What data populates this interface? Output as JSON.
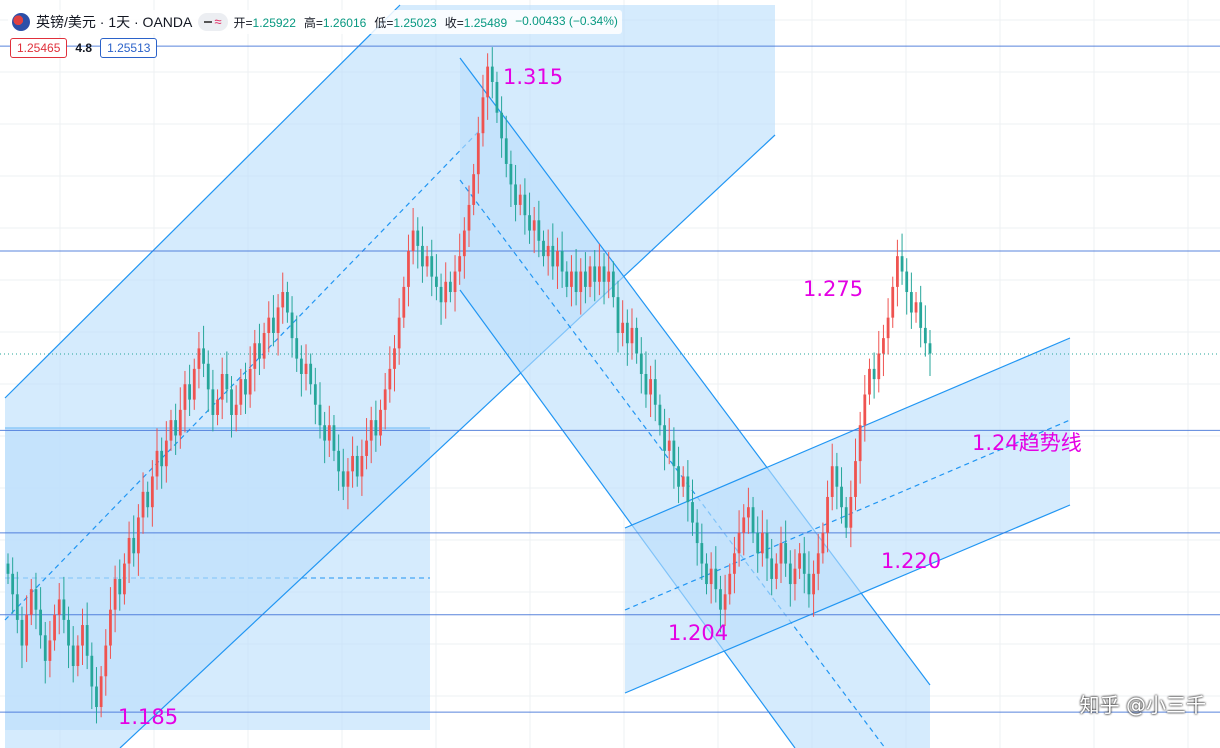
{
  "header": {
    "symbol": "英镑/美元 · 1天 · OANDA",
    "open_label": "开=",
    "open": "1.25922",
    "high_label": "高=",
    "high": "1.26016",
    "low_label": "低=",
    "low": "1.25023",
    "close_label": "收=",
    "close": "1.25489",
    "change": "−0.00433 (−0.34%)",
    "sell_price": "1.25465",
    "spread": "4.8",
    "buy_price": "1.25513"
  },
  "watermark": "知乎 @小三千",
  "colors": {
    "up": "#ef5350",
    "down": "#26a69a",
    "channel_fill": "#bbdefb",
    "channel_line": "#2196f3",
    "hline": "#3c6fd6",
    "annotation": "#e400e4"
  },
  "chart_data": {
    "type": "candlestick",
    "title": "",
    "ylim": [
      1.178,
      1.324
    ],
    "grid": true,
    "horizontal_levels": [
      1.315,
      1.275,
      1.24,
      1.22,
      1.204,
      1.185
    ],
    "current_price_line": 1.2549,
    "annotations": [
      {
        "text": "1.315",
        "price": 1.315
      },
      {
        "text": "1.275",
        "price": 1.275
      },
      {
        "text": "1.24趋势线",
        "price": 1.24
      },
      {
        "text": "1.220",
        "price": 1.22
      },
      {
        "text": "1.204",
        "price": 1.204
      },
      {
        "text": "1.185",
        "price": 1.185
      }
    ],
    "closes": [
      1.212,
      1.208,
      1.203,
      1.198,
      1.204,
      1.209,
      1.205,
      1.2,
      1.195,
      1.199,
      1.204,
      1.207,
      1.203,
      1.198,
      1.194,
      1.198,
      1.202,
      1.196,
      1.19,
      1.186,
      1.192,
      1.198,
      1.205,
      1.211,
      1.208,
      1.214,
      1.219,
      1.216,
      1.223,
      1.228,
      1.225,
      1.231,
      1.236,
      1.233,
      1.238,
      1.242,
      1.239,
      1.244,
      1.249,
      1.246,
      1.252,
      1.256,
      1.253,
      1.248,
      1.243,
      1.246,
      1.251,
      1.248,
      1.243,
      1.245,
      1.25,
      1.247,
      1.252,
      1.257,
      1.254,
      1.259,
      1.262,
      1.259,
      1.264,
      1.267,
      1.263,
      1.258,
      1.254,
      1.251,
      1.253,
      1.249,
      1.245,
      1.241,
      1.238,
      1.241,
      1.236,
      1.232,
      1.229,
      1.232,
      1.235,
      1.231,
      1.235,
      1.238,
      1.242,
      1.239,
      1.244,
      1.248,
      1.252,
      1.256,
      1.262,
      1.268,
      1.275,
      1.279,
      1.276,
      1.272,
      1.274,
      1.27,
      1.268,
      1.265,
      1.269,
      1.267,
      1.271,
      1.274,
      1.279,
      1.284,
      1.29,
      1.298,
      1.305,
      1.311,
      1.308,
      1.302,
      1.297,
      1.292,
      1.288,
      1.284,
      1.286,
      1.282,
      1.279,
      1.281,
      1.277,
      1.274,
      1.276,
      1.272,
      1.275,
      1.271,
      1.268,
      1.271,
      1.267,
      1.271,
      1.268,
      1.272,
      1.269,
      1.272,
      1.269,
      1.271,
      1.266,
      1.259,
      1.261,
      1.257,
      1.26,
      1.255,
      1.251,
      1.247,
      1.25,
      1.245,
      1.241,
      1.236,
      1.238,
      1.233,
      1.229,
      1.231,
      1.226,
      1.222,
      1.218,
      1.214,
      1.21,
      1.213,
      1.209,
      1.205,
      1.208,
      1.212,
      1.216,
      1.22,
      1.223,
      1.225,
      1.22,
      1.216,
      1.22,
      1.215,
      1.211,
      1.214,
      1.218,
      1.214,
      1.21,
      1.213,
      1.216,
      1.212,
      1.208,
      1.212,
      1.216,
      1.22,
      1.227,
      1.233,
      1.229,
      1.225,
      1.221,
      1.227,
      1.234,
      1.241,
      1.247,
      1.252,
      1.25,
      1.255,
      1.258,
      1.262,
      1.268,
      1.274,
      1.271,
      1.267,
      1.263,
      1.265,
      1.26,
      1.257,
      1.255
    ]
  }
}
